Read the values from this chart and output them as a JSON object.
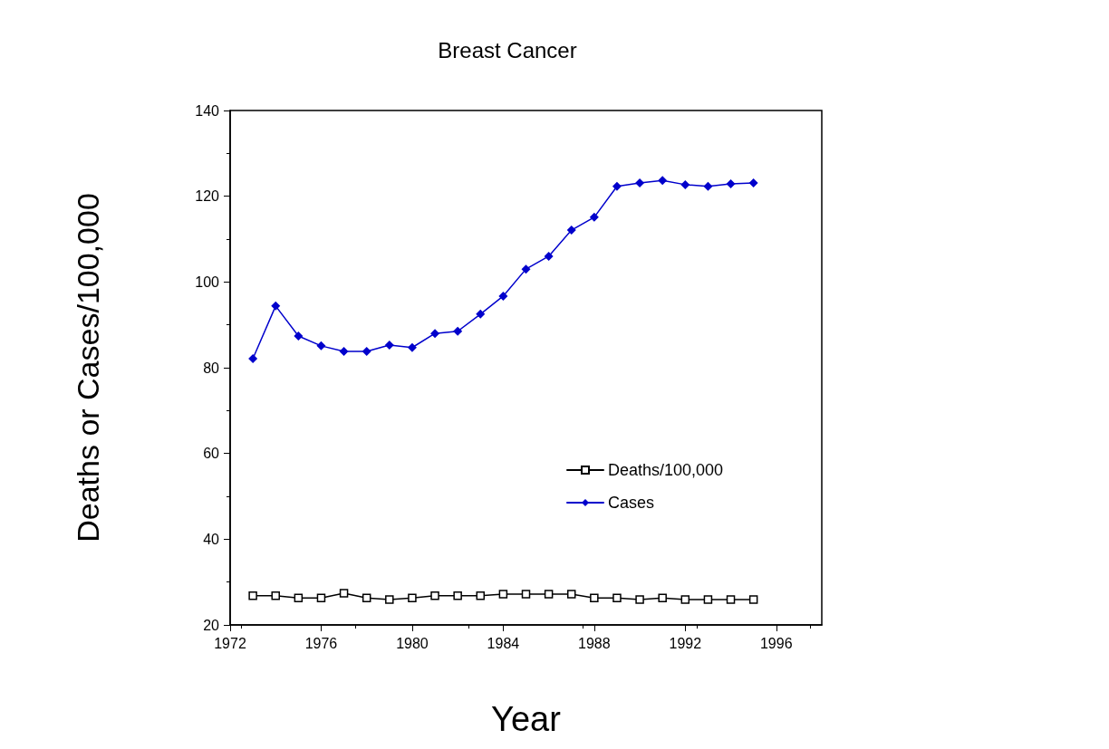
{
  "chart_data": {
    "type": "line",
    "title": "Breast Cancer",
    "xlabel": "Year",
    "ylabel": "Deaths or Cases/100,000",
    "x": [
      1973,
      1974,
      1975,
      1976,
      1977,
      1978,
      1979,
      1980,
      1981,
      1982,
      1983,
      1984,
      1985,
      1986,
      1987,
      1988,
      1989,
      1990,
      1991,
      1992,
      1993,
      1994,
      1995
    ],
    "series": [
      {
        "name": "Deaths/100,000",
        "color": "#000000",
        "marker": "square",
        "values": [
          26.8,
          26.8,
          26.3,
          26.3,
          27.4,
          26.3,
          25.9,
          26.3,
          26.8,
          26.8,
          26.8,
          27.2,
          27.2,
          27.2,
          27.2,
          26.3,
          26.3,
          25.9,
          26.3,
          25.9,
          25.9,
          25.9,
          25.9
        ]
      },
      {
        "name": "Cases",
        "color": "#0000cc",
        "marker": "diamond",
        "values": [
          82.1,
          94.4,
          87.4,
          85.1,
          83.8,
          83.8,
          85.3,
          84.7,
          88.0,
          88.5,
          92.5,
          96.7,
          103.0,
          106.0,
          112.1,
          115.1,
          122.3,
          123.1,
          123.7,
          122.7,
          122.3,
          122.9,
          123.1
        ]
      }
    ],
    "xlim": [
      1972,
      1998
    ],
    "xticks": [
      1972,
      1976,
      1980,
      1984,
      1988,
      1992,
      1996
    ],
    "ylim": [
      20,
      140
    ],
    "yticks": [
      20,
      40,
      60,
      80,
      100,
      120,
      140
    ],
    "grid": false,
    "legend": "right",
    "line_style": "solid"
  }
}
